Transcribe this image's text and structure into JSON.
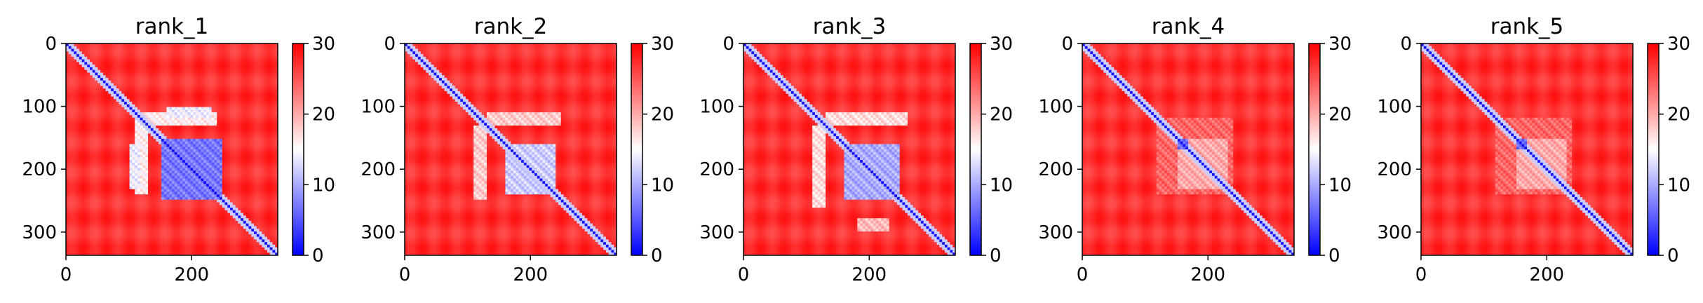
{
  "chart_data": [
    {
      "type": "heatmap",
      "title": "rank_1",
      "xlabel": "",
      "ylabel": "",
      "matrix_size": 337,
      "xlim": [
        0,
        337
      ],
      "ylim": [
        337,
        0
      ],
      "x_ticks": [
        0,
        200
      ],
      "y_ticks": [
        0,
        100,
        200,
        300
      ],
      "colormap": "bwr",
      "colorbar": {
        "vmin": 0,
        "vmax": 30,
        "ticks": [
          0,
          10,
          20,
          30
        ]
      },
      "colors": {
        "low": "#0000ff",
        "mid": "#ffffff",
        "high": "#ff0000"
      },
      "diagonal_value": 0,
      "background_value": 29,
      "blocks": [
        {
          "x_range": [
            150,
            250
          ],
          "y_range": [
            150,
            250
          ],
          "value": 5
        },
        {
          "x_range": [
            110,
            130
          ],
          "y_range": [
            120,
            240
          ],
          "value": 14
        },
        {
          "x_range": [
            120,
            240
          ],
          "y_range": [
            110,
            130
          ],
          "value": 14
        },
        {
          "x_range": [
            160,
            230
          ],
          "y_range": [
            100,
            120
          ],
          "value": 12
        },
        {
          "x_range": [
            100,
            120
          ],
          "y_range": [
            160,
            230
          ],
          "value": 12
        }
      ]
    },
    {
      "type": "heatmap",
      "title": "rank_2",
      "xlabel": "",
      "ylabel": "",
      "matrix_size": 337,
      "xlim": [
        0,
        337
      ],
      "ylim": [
        337,
        0
      ],
      "x_ticks": [
        0,
        200
      ],
      "y_ticks": [
        0,
        100,
        200,
        300
      ],
      "colormap": "bwr",
      "colorbar": {
        "vmin": 0,
        "vmax": 30,
        "ticks": [
          0,
          10,
          20,
          30
        ]
      },
      "colors": {
        "low": "#0000ff",
        "mid": "#ffffff",
        "high": "#ff0000"
      },
      "diagonal_value": 0,
      "background_value": 29,
      "blocks": [
        {
          "x_range": [
            160,
            240
          ],
          "y_range": [
            160,
            240
          ],
          "value": 10
        },
        {
          "x_range": [
            110,
            130
          ],
          "y_range": [
            130,
            250
          ],
          "value": 16
        },
        {
          "x_range": [
            130,
            250
          ],
          "y_range": [
            110,
            130
          ],
          "value": 16
        }
      ]
    },
    {
      "type": "heatmap",
      "title": "rank_3",
      "xlabel": "",
      "ylabel": "",
      "matrix_size": 337,
      "xlim": [
        0,
        337
      ],
      "ylim": [
        337,
        0
      ],
      "x_ticks": [
        0,
        200
      ],
      "y_ticks": [
        0,
        100,
        200,
        300
      ],
      "colormap": "bwr",
      "colorbar": {
        "vmin": 0,
        "vmax": 30,
        "ticks": [
          0,
          10,
          20,
          30
        ]
      },
      "colors": {
        "low": "#0000ff",
        "mid": "#ffffff",
        "high": "#ff0000"
      },
      "diagonal_value": 0,
      "background_value": 29,
      "blocks": [
        {
          "x_range": [
            160,
            250
          ],
          "y_range": [
            160,
            250
          ],
          "value": 8
        },
        {
          "x_range": [
            110,
            130
          ],
          "y_range": [
            130,
            260
          ],
          "value": 15
        },
        {
          "x_range": [
            130,
            260
          ],
          "y_range": [
            110,
            130
          ],
          "value": 15
        },
        {
          "x_range": [
            180,
            230
          ],
          "y_range": [
            280,
            300
          ],
          "value": 17
        }
      ]
    },
    {
      "type": "heatmap",
      "title": "rank_4",
      "xlabel": "",
      "ylabel": "",
      "matrix_size": 337,
      "xlim": [
        0,
        337
      ],
      "ylim": [
        337,
        0
      ],
      "x_ticks": [
        0,
        200
      ],
      "y_ticks": [
        0,
        100,
        200,
        300
      ],
      "colormap": "bwr",
      "colorbar": {
        "vmin": 0,
        "vmax": 30,
        "ticks": [
          0,
          10,
          20,
          30
        ]
      },
      "colors": {
        "low": "#0000ff",
        "mid": "#ffffff",
        "high": "#ff0000"
      },
      "diagonal_value": 0,
      "background_value": 29,
      "blocks": [
        {
          "x_range": [
            150,
            230
          ],
          "y_range": [
            150,
            230
          ],
          "value": 18
        },
        {
          "x_range": [
            150,
            170
          ],
          "y_range": [
            150,
            170
          ],
          "value": 4
        },
        {
          "x_range": [
            120,
            240
          ],
          "y_range": [
            120,
            240
          ],
          "value": 22
        }
      ]
    },
    {
      "type": "heatmap",
      "title": "rank_5",
      "xlabel": "",
      "ylabel": "",
      "matrix_size": 337,
      "xlim": [
        0,
        337
      ],
      "ylim": [
        337,
        0
      ],
      "x_ticks": [
        0,
        200
      ],
      "y_ticks": [
        0,
        100,
        200,
        300
      ],
      "colormap": "bwr",
      "colorbar": {
        "vmin": 0,
        "vmax": 30,
        "ticks": [
          0,
          10,
          20,
          30
        ]
      },
      "colors": {
        "low": "#0000ff",
        "mid": "#ffffff",
        "high": "#ff0000"
      },
      "diagonal_value": 0,
      "background_value": 29,
      "blocks": [
        {
          "x_range": [
            150,
            230
          ],
          "y_range": [
            150,
            230
          ],
          "value": 18
        },
        {
          "x_range": [
            150,
            170
          ],
          "y_range": [
            150,
            170
          ],
          "value": 4
        },
        {
          "x_range": [
            120,
            240
          ],
          "y_range": [
            120,
            240
          ],
          "value": 22
        }
      ]
    }
  ]
}
